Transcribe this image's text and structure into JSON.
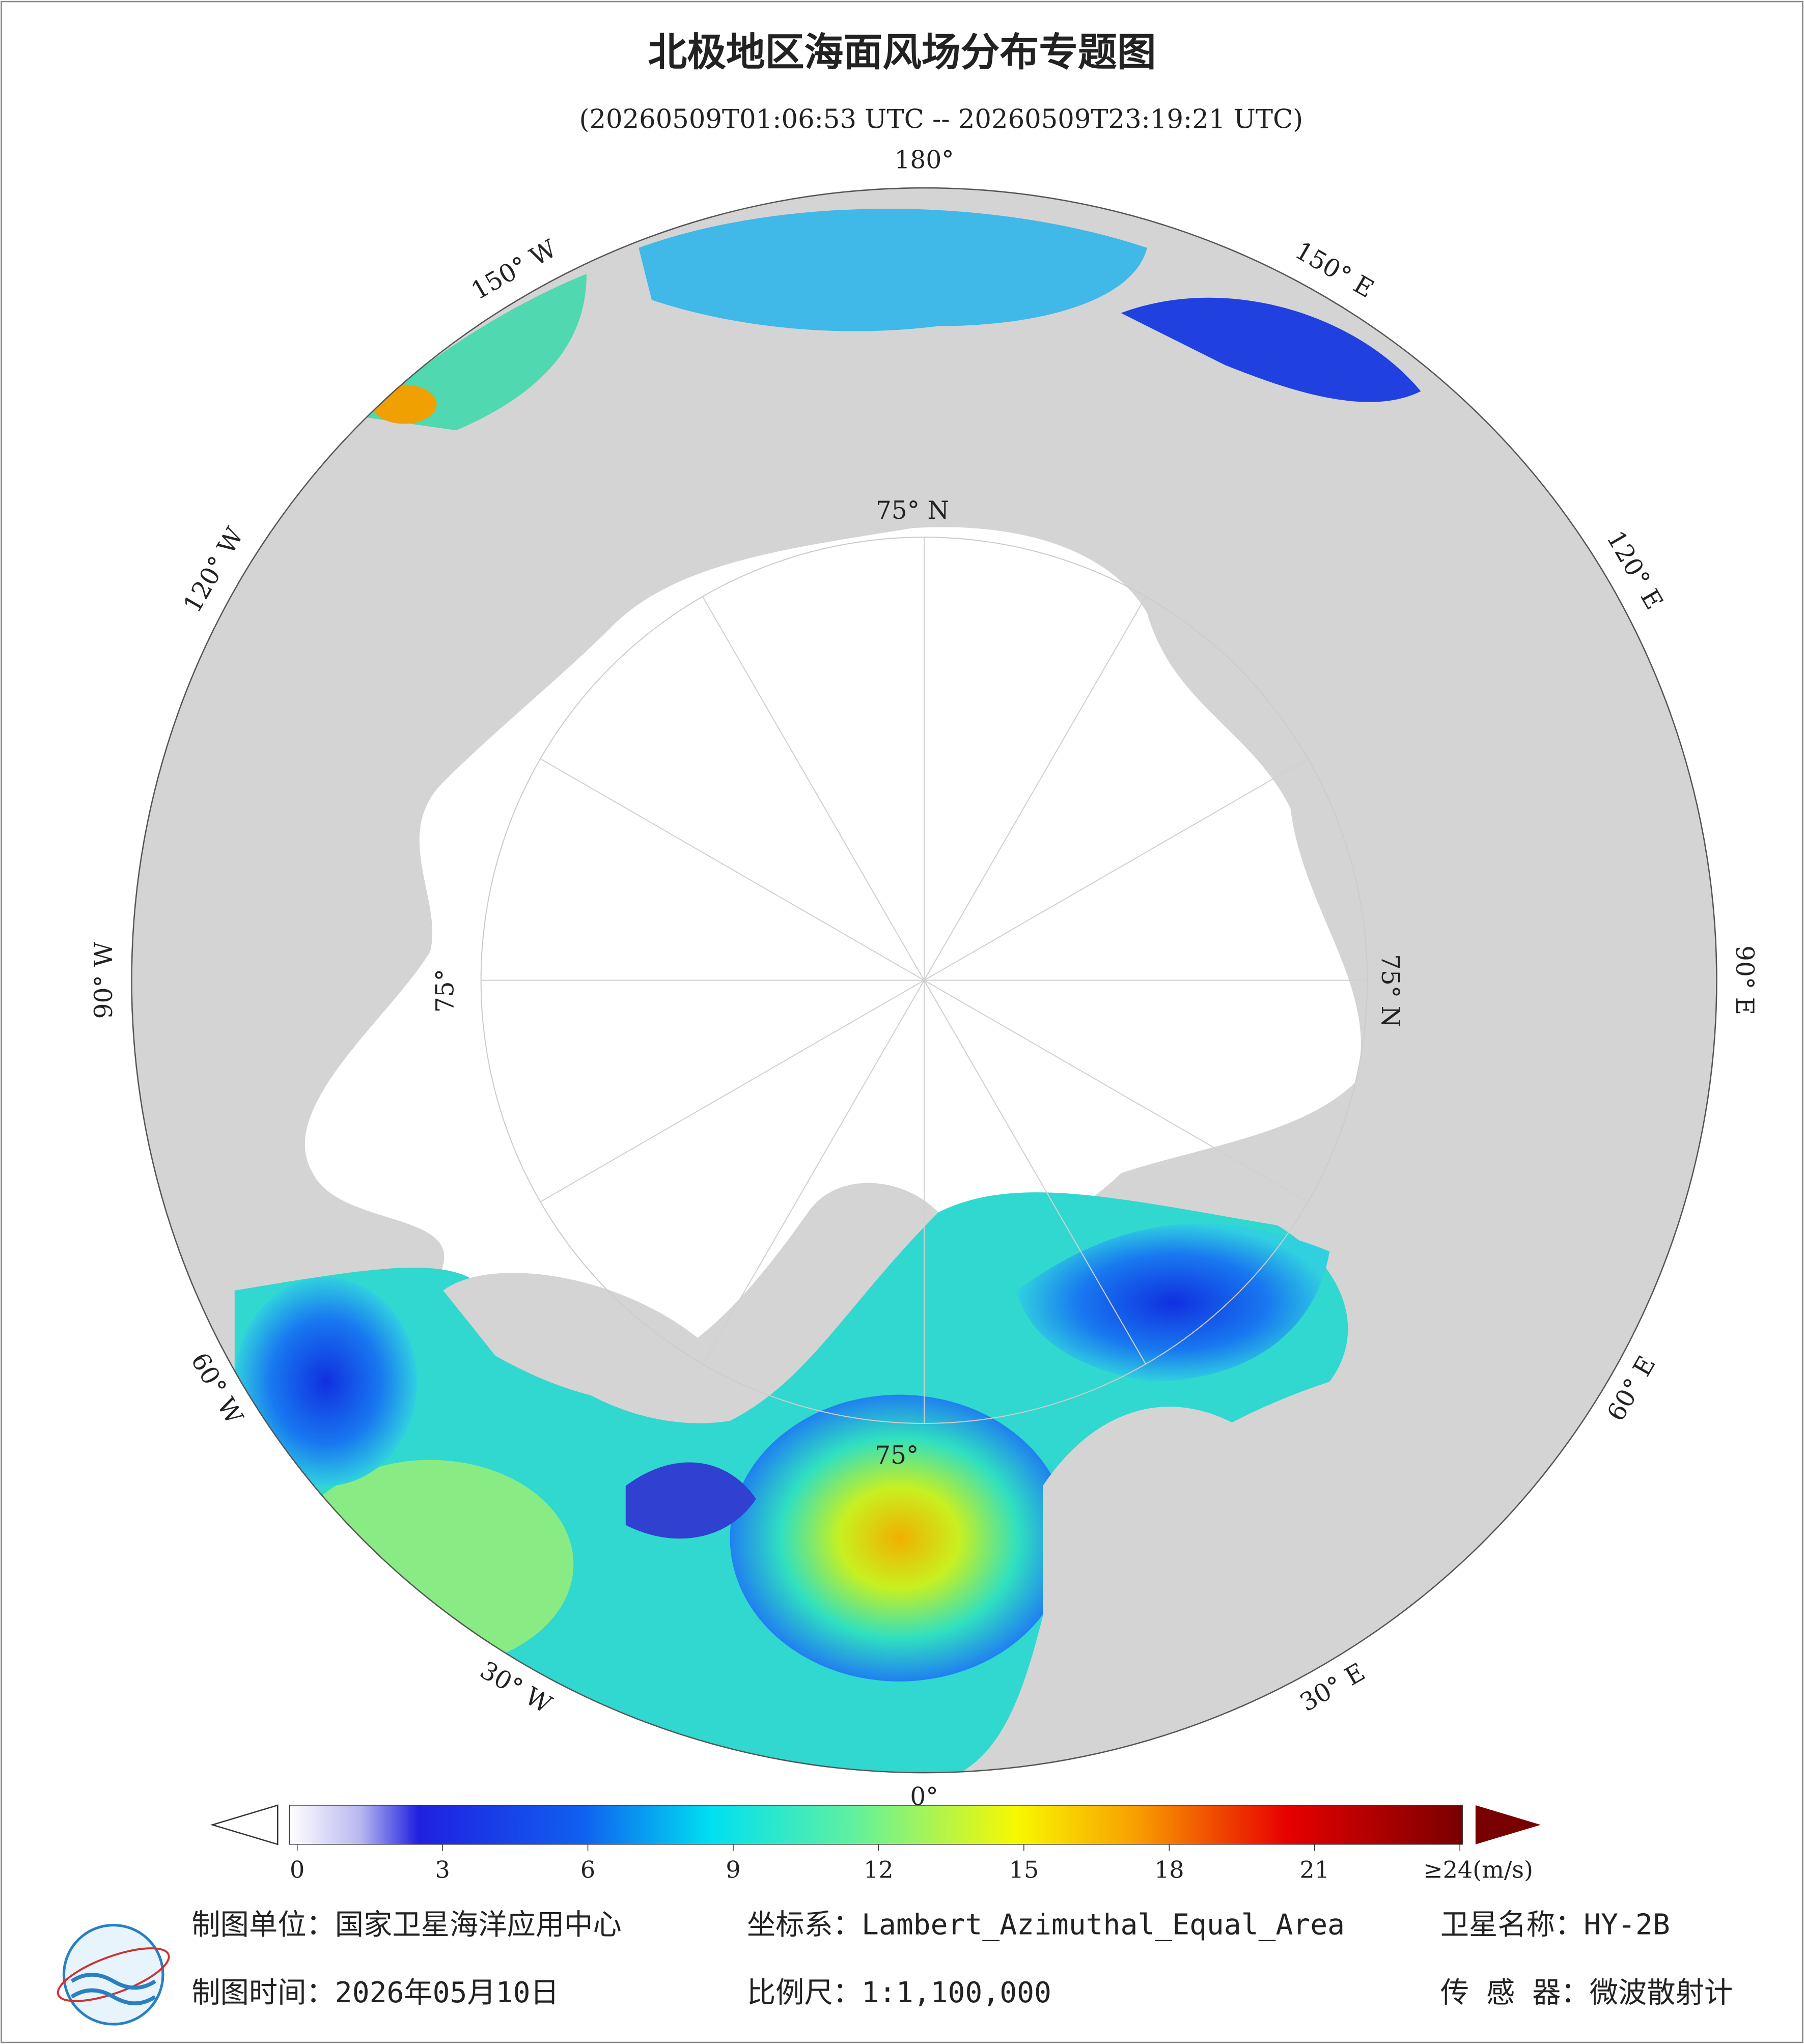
{
  "title": "北极地区海面风场分布专题图",
  "subtitle": "(20260509T01:06:53 UTC -- 20260509T23:19:21 UTC)",
  "longitude_labels": [
    "180°",
    "150° E",
    "120° E",
    "90° E",
    "60° E",
    "30° E",
    "0°",
    "30° W",
    "60° W",
    "90° W",
    "120° W",
    "150° W"
  ],
  "latitude_labels": [
    "75° N",
    "75° N",
    "75°",
    "75°"
  ],
  "colorbar": {
    "range": [
      0,
      24
    ],
    "ticks": [
      0,
      3,
      6,
      9,
      12,
      15,
      18,
      21,
      {
        "value": 24,
        "label": "≥24(m/s)"
      }
    ]
  },
  "footer": {
    "left": [
      "制图单位：国家卫星海洋应用中心",
      "制图时间：2026年05月10日"
    ],
    "middle": [
      "坐标系：Lambert_Azimuthal_Equal_Area",
      "比例尺：1:1,100,000"
    ],
    "right": [
      "卫星名称：HY-2B",
      "传 感 器：微波散射计"
    ]
  }
}
